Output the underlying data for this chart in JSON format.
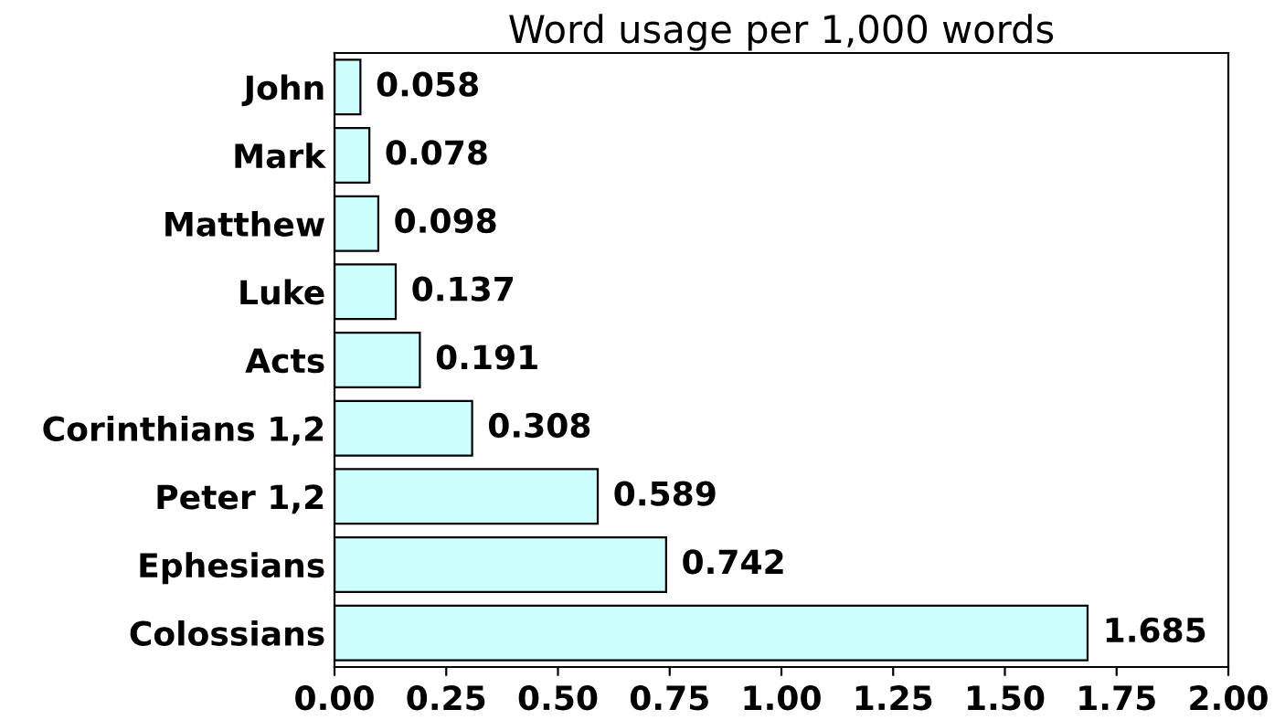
{
  "chart_data": {
    "type": "bar",
    "orientation": "horizontal",
    "title": "Word usage per 1,000 words",
    "categories": [
      "John",
      "Mark",
      "Matthew",
      "Luke",
      "Acts",
      "Corinthians 1,2",
      "Peter 1,2",
      "Ephesians",
      "Colossians"
    ],
    "values": [
      0.058,
      0.078,
      0.098,
      0.137,
      0.191,
      0.308,
      0.589,
      0.742,
      1.685
    ],
    "color": "#ccffff",
    "xlim": [
      0,
      2
    ],
    "xticks": [
      {
        "value": 0,
        "label": "0.00"
      },
      {
        "value": 0.25,
        "label": "0.25"
      },
      {
        "value": 0.5,
        "label": "0.50"
      },
      {
        "value": 0.75,
        "label": "0.75"
      },
      {
        "value": 1,
        "label": "1.00"
      },
      {
        "value": 1.25,
        "label": "1.25"
      },
      {
        "value": 1.5,
        "label": "1.50"
      },
      {
        "value": 1.75,
        "label": "1.75"
      },
      {
        "value": 2,
        "label": "2.00"
      }
    ],
    "data_labels": true,
    "grid": false
  }
}
